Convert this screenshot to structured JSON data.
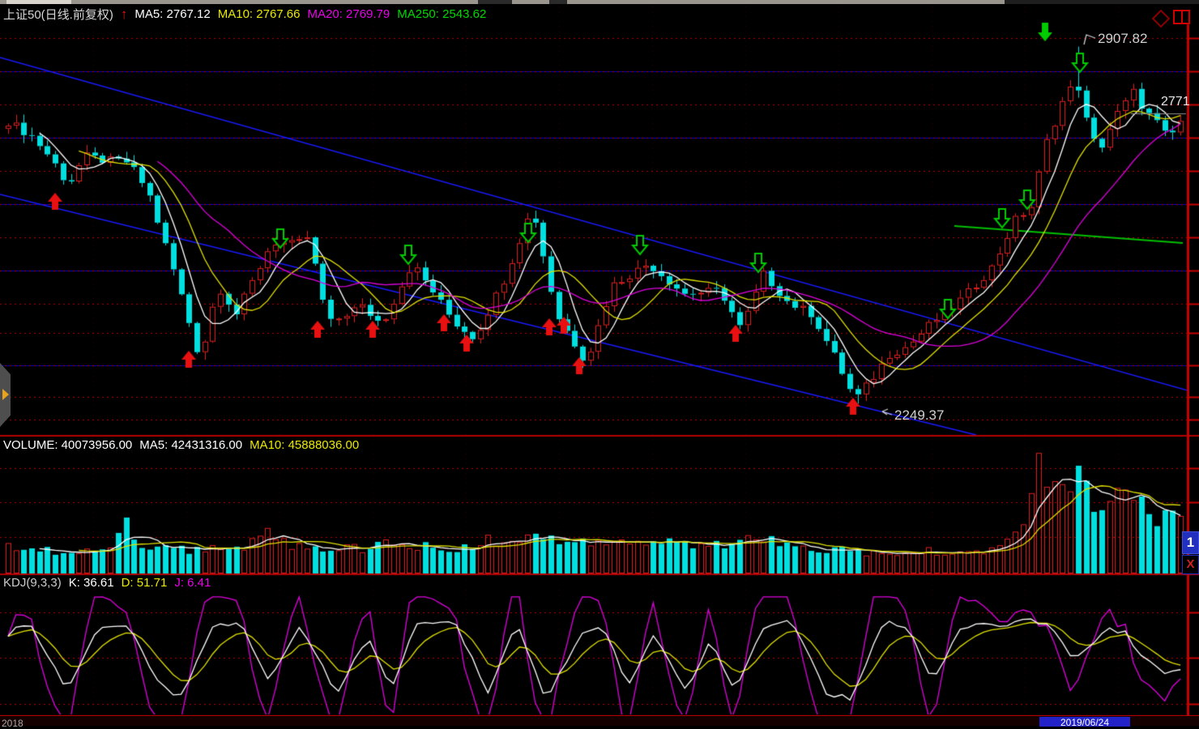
{
  "header": {
    "title": "上证50(日线.前复权)",
    "arrow": "↑",
    "ma5": "MA5: 2767.12",
    "ma10": "MA10: 2767.66",
    "ma20": "MA20: 2769.79",
    "ma250": "MA250: 2543.62"
  },
  "volume_header": {
    "volume": "VOLUME: 40073956.00",
    "ma5": "MA5: 42431316.00",
    "ma10": "MA10: 45888036.00"
  },
  "kdj_header": {
    "name": "KDJ(9,3,3)",
    "k": "K: 36.61",
    "d": "D: 51.71",
    "j": "J: 6.41"
  },
  "annotations": {
    "peak": "2907.82",
    "trough": "2249.37",
    "last_price": "2771"
  },
  "date_axis": {
    "left_label": "2018",
    "highlight_label": "2019/06/24"
  },
  "side_controls": {
    "pane_button": "1",
    "close_button": "X"
  },
  "chart_data": {
    "type": "candlestick",
    "symbol": "上证50",
    "period": "日线",
    "adjust": "前复权",
    "price_axis": {
      "min": 2205,
      "max": 2940
    },
    "key_points": {
      "peak_high": 2907.82,
      "trough_low": 2249.37,
      "last_close_label": "2771"
    },
    "ma_values": {
      "ma5": 2767.12,
      "ma10": 2767.66,
      "ma20": 2769.79,
      "ma250": 2543.62
    },
    "close_anchors": [
      [
        0,
        2770
      ],
      [
        30,
        2742
      ],
      [
        55,
        2700
      ],
      [
        75,
        2652
      ],
      [
        95,
        2706
      ],
      [
        120,
        2698
      ],
      [
        150,
        2695
      ],
      [
        175,
        2640
      ],
      [
        210,
        2480
      ],
      [
        240,
        2330
      ],
      [
        262,
        2468
      ],
      [
        285,
        2415
      ],
      [
        330,
        2548
      ],
      [
        360,
        2542
      ],
      [
        375,
        2558
      ],
      [
        400,
        2396
      ],
      [
        440,
        2430
      ],
      [
        467,
        2396
      ],
      [
        505,
        2508
      ],
      [
        530,
        2458
      ],
      [
        557,
        2400
      ],
      [
        583,
        2370
      ],
      [
        620,
        2480
      ],
      [
        655,
        2612
      ],
      [
        685,
        2415
      ],
      [
        722,
        2326
      ],
      [
        755,
        2468
      ],
      [
        800,
        2508
      ],
      [
        845,
        2452
      ],
      [
        890,
        2458
      ],
      [
        916,
        2386
      ],
      [
        944,
        2488
      ],
      [
        975,
        2436
      ],
      [
        1005,
        2414
      ],
      [
        1035,
        2330
      ],
      [
        1058,
        2256
      ],
      [
        1080,
        2296
      ],
      [
        1100,
        2340
      ],
      [
        1125,
        2356
      ],
      [
        1155,
        2400
      ],
      [
        1175,
        2420
      ],
      [
        1200,
        2455
      ],
      [
        1230,
        2502
      ],
      [
        1258,
        2588
      ],
      [
        1280,
        2615
      ],
      [
        1295,
        2722
      ],
      [
        1318,
        2808
      ],
      [
        1335,
        2846
      ],
      [
        1347,
        2772
      ],
      [
        1362,
        2712
      ],
      [
        1384,
        2780
      ],
      [
        1406,
        2824
      ],
      [
        1420,
        2790
      ],
      [
        1435,
        2768
      ],
      [
        1450,
        2736
      ],
      [
        1465,
        2771
      ]
    ],
    "volume": {
      "current": 40073956.0,
      "ma5": 42431316.0,
      "ma10": 45888036.0,
      "profile_anchors": [
        [
          0,
          0.22
        ],
        [
          30,
          0.2
        ],
        [
          60,
          0.18
        ],
        [
          90,
          0.21
        ],
        [
          130,
          0.22
        ],
        [
          152,
          0.6
        ],
        [
          160,
          0.25
        ],
        [
          190,
          0.22
        ],
        [
          220,
          0.2
        ],
        [
          250,
          0.22
        ],
        [
          280,
          0.18
        ],
        [
          310,
          0.28
        ],
        [
          320,
          0.38
        ],
        [
          340,
          0.28
        ],
        [
          370,
          0.24
        ],
        [
          400,
          0.22
        ],
        [
          430,
          0.21
        ],
        [
          460,
          0.23
        ],
        [
          490,
          0.26
        ],
        [
          520,
          0.23
        ],
        [
          550,
          0.21
        ],
        [
          580,
          0.23
        ],
        [
          610,
          0.3
        ],
        [
          625,
          0.36
        ],
        [
          640,
          0.3
        ],
        [
          655,
          0.33
        ],
        [
          670,
          0.27
        ],
        [
          690,
          0.29
        ],
        [
          710,
          0.31
        ],
        [
          730,
          0.29
        ],
        [
          745,
          0.31
        ],
        [
          760,
          0.29
        ],
        [
          775,
          0.33
        ],
        [
          790,
          0.3
        ],
        [
          810,
          0.27
        ],
        [
          840,
          0.23
        ],
        [
          870,
          0.26
        ],
        [
          900,
          0.23
        ],
        [
          930,
          0.29
        ],
        [
          960,
          0.26
        ],
        [
          990,
          0.2
        ],
        [
          1020,
          0.18
        ],
        [
          1050,
          0.2
        ],
        [
          1080,
          0.18
        ],
        [
          1110,
          0.16
        ],
        [
          1140,
          0.18
        ],
        [
          1170,
          0.2
        ],
        [
          1200,
          0.19
        ],
        [
          1230,
          0.23
        ],
        [
          1255,
          0.3
        ],
        [
          1270,
          0.45
        ],
        [
          1283,
          0.8
        ],
        [
          1292,
          0.97
        ],
        [
          1302,
          0.85
        ],
        [
          1312,
          0.72
        ],
        [
          1322,
          0.77
        ],
        [
          1332,
          0.9
        ],
        [
          1342,
          0.8
        ],
        [
          1355,
          0.66
        ],
        [
          1368,
          0.56
        ],
        [
          1380,
          0.62
        ],
        [
          1394,
          0.76
        ],
        [
          1402,
          0.85
        ],
        [
          1412,
          0.7
        ],
        [
          1425,
          0.56
        ],
        [
          1438,
          0.5
        ],
        [
          1448,
          0.46
        ],
        [
          1458,
          0.56
        ],
        [
          1465,
          0.5
        ]
      ]
    },
    "kdj": {
      "k": 36.61,
      "d": 51.71,
      "j": 6.41,
      "k_anchors": [
        [
          0,
          70
        ],
        [
          25,
          85
        ],
        [
          75,
          20
        ],
        [
          110,
          75
        ],
        [
          150,
          82
        ],
        [
          185,
          30
        ],
        [
          215,
          12
        ],
        [
          255,
          78
        ],
        [
          290,
          82
        ],
        [
          325,
          28
        ],
        [
          365,
          78
        ],
        [
          410,
          18
        ],
        [
          450,
          68
        ],
        [
          480,
          22
        ],
        [
          510,
          80
        ],
        [
          555,
          86
        ],
        [
          600,
          18
        ],
        [
          635,
          82
        ],
        [
          672,
          12
        ],
        [
          715,
          72
        ],
        [
          745,
          78
        ],
        [
          775,
          22
        ],
        [
          805,
          72
        ],
        [
          848,
          18
        ],
        [
          878,
          68
        ],
        [
          908,
          18
        ],
        [
          942,
          78
        ],
        [
          980,
          84
        ],
        [
          1022,
          18
        ],
        [
          1052,
          12
        ],
        [
          1095,
          82
        ],
        [
          1125,
          78
        ],
        [
          1155,
          28
        ],
        [
          1185,
          72
        ],
        [
          1212,
          82
        ],
        [
          1243,
          76
        ],
        [
          1270,
          86
        ],
        [
          1300,
          82
        ],
        [
          1330,
          48
        ],
        [
          1352,
          62
        ],
        [
          1375,
          78
        ],
        [
          1397,
          72
        ],
        [
          1420,
          48
        ],
        [
          1445,
          37
        ],
        [
          1465,
          36.6
        ]
      ]
    },
    "signals": {
      "buy_arrows": [
        [
          68,
          238
        ],
        [
          233,
          433
        ],
        [
          392,
          396
        ],
        [
          460,
          396
        ],
        [
          548,
          388
        ],
        [
          576,
          413
        ],
        [
          678,
          393
        ],
        [
          696,
          391
        ],
        [
          715,
          441
        ],
        [
          908,
          401
        ],
        [
          1053,
          491
        ]
      ],
      "sell_arrows_hollow": [
        [
          346,
          283
        ],
        [
          504,
          303
        ],
        [
          652,
          276
        ],
        [
          790,
          291
        ],
        [
          936,
          313
        ],
        [
          1170,
          370
        ],
        [
          1237,
          258
        ],
        [
          1268,
          235
        ],
        [
          1333,
          66
        ]
      ],
      "sell_arrows_solid": [
        [
          1290,
          28
        ]
      ]
    },
    "trendlines": [
      [
        0,
        71,
        1480,
        486
      ],
      [
        0,
        240,
        1205,
        537
      ]
    ],
    "ma250_segment": [
      [
        1178,
        279
      ],
      [
        1300,
        288
      ],
      [
        1460,
        300
      ]
    ],
    "gridlines": {
      "main_blue": [
        88,
        170,
        252,
        334,
        451
      ],
      "main_dotted": [
        47,
        88,
        129,
        170,
        211,
        252,
        293,
        334,
        375,
        411,
        451,
        490,
        518
      ],
      "volume_dotted": [
        578,
        620,
        663
      ],
      "kdj_dotted": [
        756,
        812,
        869
      ],
      "vertical_step": 115
    },
    "colors": {
      "up": "#e02020",
      "down": "#00e0e0",
      "ma5": "#ffffff",
      "ma10": "#e0e000",
      "ma20": "#e000e0",
      "ma250": "#00c000",
      "grid_blue": "#0000cc",
      "grid_dot": "#b40000",
      "trend": "#1a1aff",
      "axis": "#c80000",
      "separator": "#b40000",
      "buy": "#e81010",
      "sell": "#00cc00",
      "last_price_line": "#909090",
      "label_text": "#cfcfcf"
    }
  }
}
